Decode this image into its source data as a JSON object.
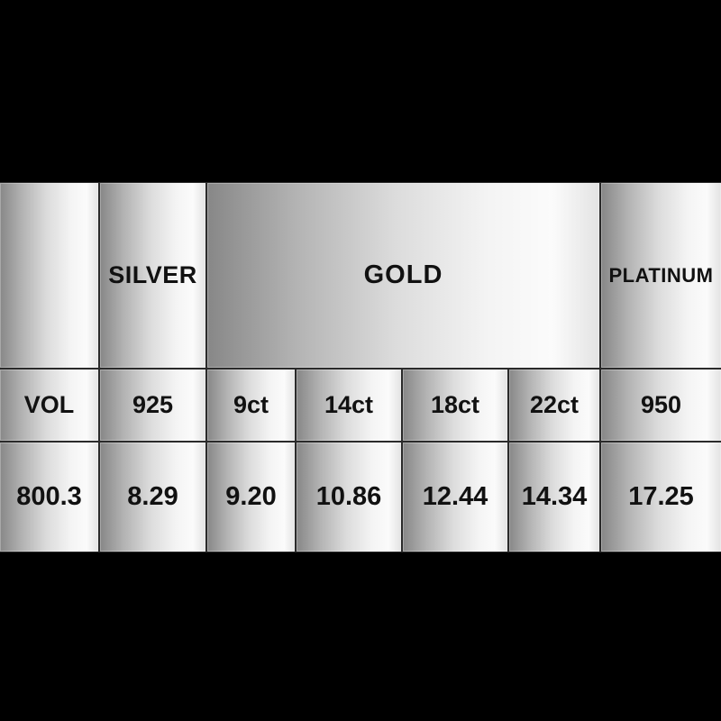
{
  "table": {
    "groups": {
      "spacer": "",
      "silver": "SILVER",
      "gold": "GOLD",
      "platinum": "PLATINUM"
    },
    "columns": [
      "VOL",
      "925",
      "9ct",
      "14ct",
      "18ct",
      "22ct",
      "950"
    ],
    "values": [
      "800.3",
      "8.29",
      "9.20",
      "10.86",
      "12.44",
      "14.34",
      "17.25"
    ]
  },
  "colors": {
    "background": "#000000",
    "cell_text": "#111111",
    "metal_dark": "#878787",
    "metal_light": "#fbfbfb",
    "grid_line": "#2a2a2a"
  },
  "chart_data": {
    "type": "table",
    "column_groups": [
      {
        "label": "",
        "span": 1
      },
      {
        "label": "SILVER",
        "span": 1
      },
      {
        "label": "GOLD",
        "span": 4
      },
      {
        "label": "PLATINUM",
        "span": 1
      }
    ],
    "columns": [
      "VOL",
      "925",
      "9ct",
      "14ct",
      "18ct",
      "22ct",
      "950"
    ],
    "rows": [
      {
        "label": "VOL",
        "values": [
          800.3,
          8.29,
          9.2,
          10.86,
          12.44,
          14.34,
          17.25
        ]
      }
    ],
    "notes": "Precious metal price table on black background; GOLD header spans the 9ct, 14ct, 18ct and 22ct columns; metallic gradient cells"
  }
}
